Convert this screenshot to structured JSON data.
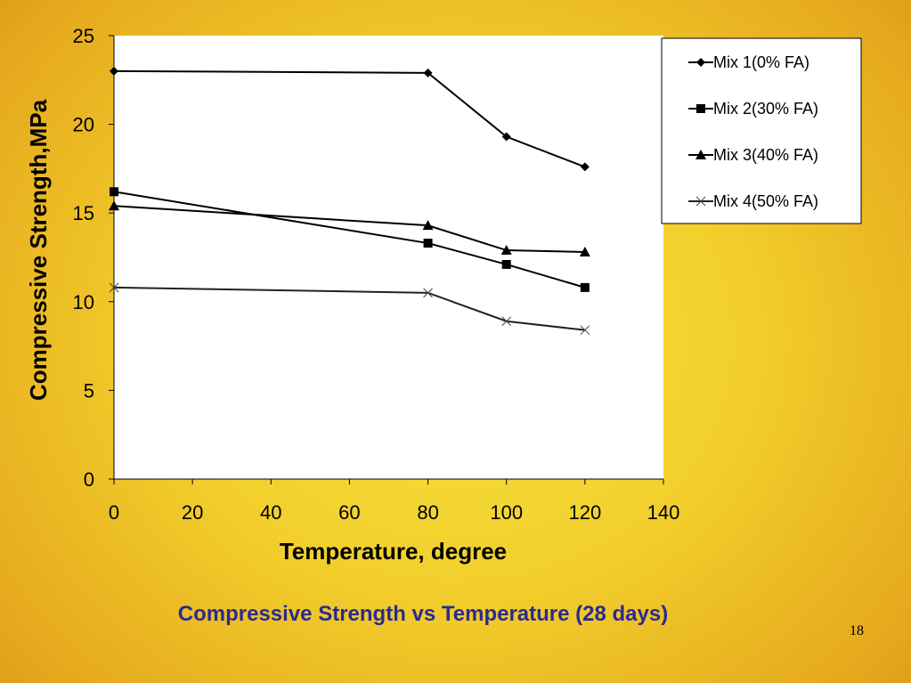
{
  "chart_data": {
    "type": "line",
    "title": "",
    "xlabel": "Temperature, degree",
    "ylabel": "Compressive Strength,MPa",
    "xlim": [
      0,
      140
    ],
    "ylim": [
      0,
      25
    ],
    "x_ticks": [
      "0",
      "20",
      "40",
      "60",
      "80",
      "100",
      "120",
      "140"
    ],
    "y_ticks": [
      "0",
      "5",
      "10",
      "15",
      "20",
      "25"
    ],
    "grid": false,
    "legend_position": "top-right",
    "x": [
      0,
      80,
      100,
      120
    ],
    "series": [
      {
        "name": "Mix 1(0% FA)",
        "marker": "diamond",
        "color": "#000000",
        "values": [
          23.0,
          22.9,
          19.3,
          17.6
        ]
      },
      {
        "name": "Mix 2(30% FA)",
        "marker": "square",
        "color": "#000000",
        "values": [
          16.2,
          13.3,
          12.1,
          10.8
        ]
      },
      {
        "name": "Mix 3(40% FA)",
        "marker": "triangle",
        "color": "#000000",
        "values": [
          15.4,
          14.3,
          12.9,
          12.8
        ]
      },
      {
        "name": "Mix 4(50% FA)",
        "marker": "x",
        "color": "#000000",
        "values": [
          10.8,
          10.5,
          8.9,
          8.4
        ]
      }
    ]
  },
  "caption": "Compressive Strength vs Temperature (28 days)",
  "slide_number": "18"
}
